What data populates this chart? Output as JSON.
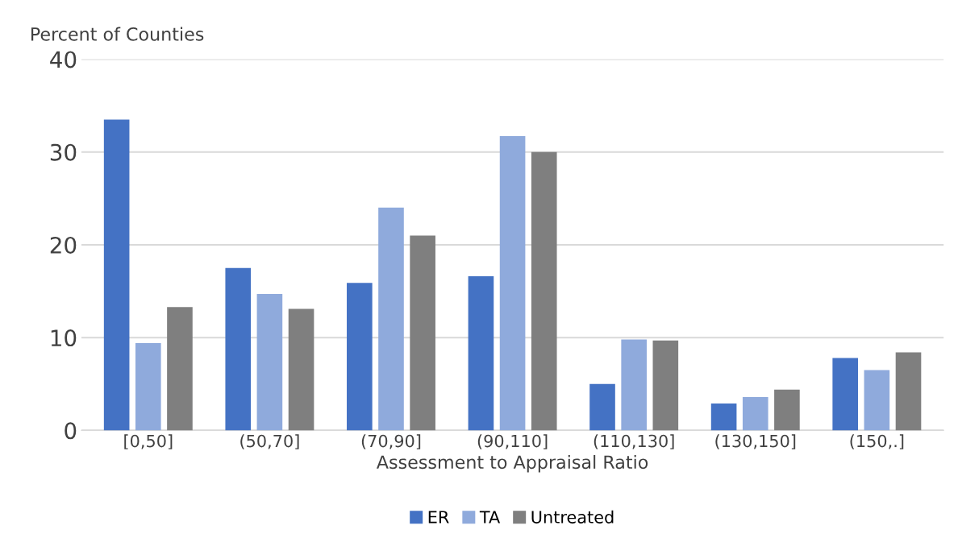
{
  "chart_data": {
    "type": "bar",
    "ylabel": "Percent of Counties",
    "xlabel": "Assessment to Appraisal Ratio",
    "categories": [
      "[0,50]",
      "(50,70]",
      "(70,90]",
      "(90,110]",
      "(110,130]",
      "(130,150]",
      "(150,.]"
    ],
    "series": [
      {
        "name": "ER",
        "color": "#4472c4",
        "values": [
          33.5,
          17.5,
          15.9,
          16.6,
          5.0,
          2.9,
          7.8
        ]
      },
      {
        "name": "TA",
        "color": "#8faadc",
        "values": [
          9.4,
          14.7,
          24.0,
          31.7,
          9.8,
          3.6,
          6.5
        ]
      },
      {
        "name": "Untreated",
        "color": "#7f7f7f",
        "values": [
          13.3,
          13.1,
          21.0,
          30.0,
          9.7,
          4.4,
          8.4
        ]
      }
    ],
    "ylim": [
      0,
      40
    ],
    "yticks": [
      0,
      10,
      20,
      30,
      40
    ],
    "grid": "y",
    "legend": "bottom"
  }
}
